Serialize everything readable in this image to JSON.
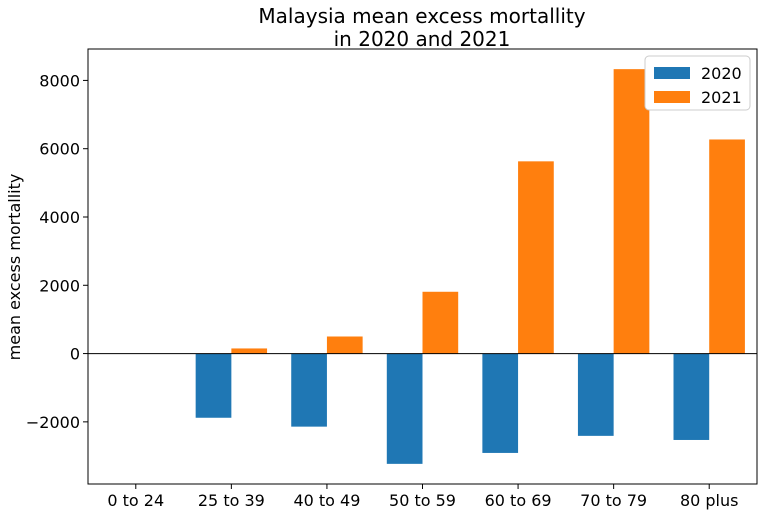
{
  "chart_data": {
    "type": "bar",
    "title_line1": "Malaysia mean excess mortallity",
    "title_line2": "in 2020 and 2021",
    "xlabel": "",
    "ylabel": "mean excess mortallity",
    "categories": [
      "0 to 24",
      "25 to 39",
      "40 to 49",
      "50 to 59",
      "60 to 69",
      "70 to 79",
      "80 plus"
    ],
    "series": [
      {
        "name": "2020",
        "color": "#1f77b4",
        "values": [
          0,
          -1880,
          -2140,
          -3230,
          -2910,
          -2410,
          -2530
        ]
      },
      {
        "name": "2021",
        "color": "#ff7f0e",
        "values": [
          0,
          150,
          500,
          1810,
          5630,
          8330,
          6270
        ]
      }
    ],
    "ylim": [
      -3820,
      8920
    ],
    "yticks": [
      -2000,
      0,
      2000,
      4000,
      6000,
      8000
    ],
    "ytick_labels": [
      "−2000",
      "0",
      "2000",
      "4000",
      "6000",
      "8000"
    ],
    "legend_position": "top-right",
    "zero_line": true,
    "grid": false
  }
}
